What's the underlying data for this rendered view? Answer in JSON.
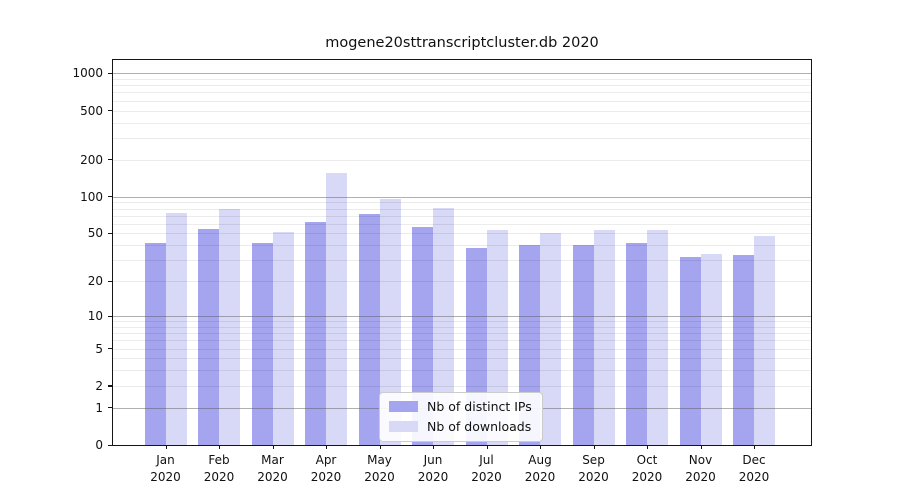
{
  "title": "mogene20sttranscriptcluster.db 2020",
  "chart_data": {
    "type": "bar",
    "title": "mogene20sttranscriptcluster.db 2020",
    "year_label": "2020",
    "categories": [
      "Jan",
      "Feb",
      "Mar",
      "Apr",
      "May",
      "Jun",
      "Jul",
      "Aug",
      "Sep",
      "Oct",
      "Nov",
      "Dec"
    ],
    "series": [
      {
        "name": "Nb of distinct IPs",
        "color": "#a4a4ef",
        "values": [
          42,
          54,
          42,
          62,
          72,
          56,
          38,
          40,
          40,
          42,
          32,
          33
        ]
      },
      {
        "name": "Nb of downloads",
        "color": "#d8d8f7",
        "values": [
          73,
          79,
          51,
          155,
          95,
          81,
          53,
          50,
          53,
          53,
          34,
          48
        ]
      }
    ],
    "yscale": "log1p",
    "yticks": [
      1000,
      500,
      200,
      100,
      50,
      20,
      10,
      5,
      2,
      1,
      0
    ],
    "major_gridlines": [
      1,
      10,
      100,
      1000
    ],
    "ylim": [
      0,
      1280
    ],
    "grid": "horizontal",
    "legend_position": "lower-center"
  }
}
